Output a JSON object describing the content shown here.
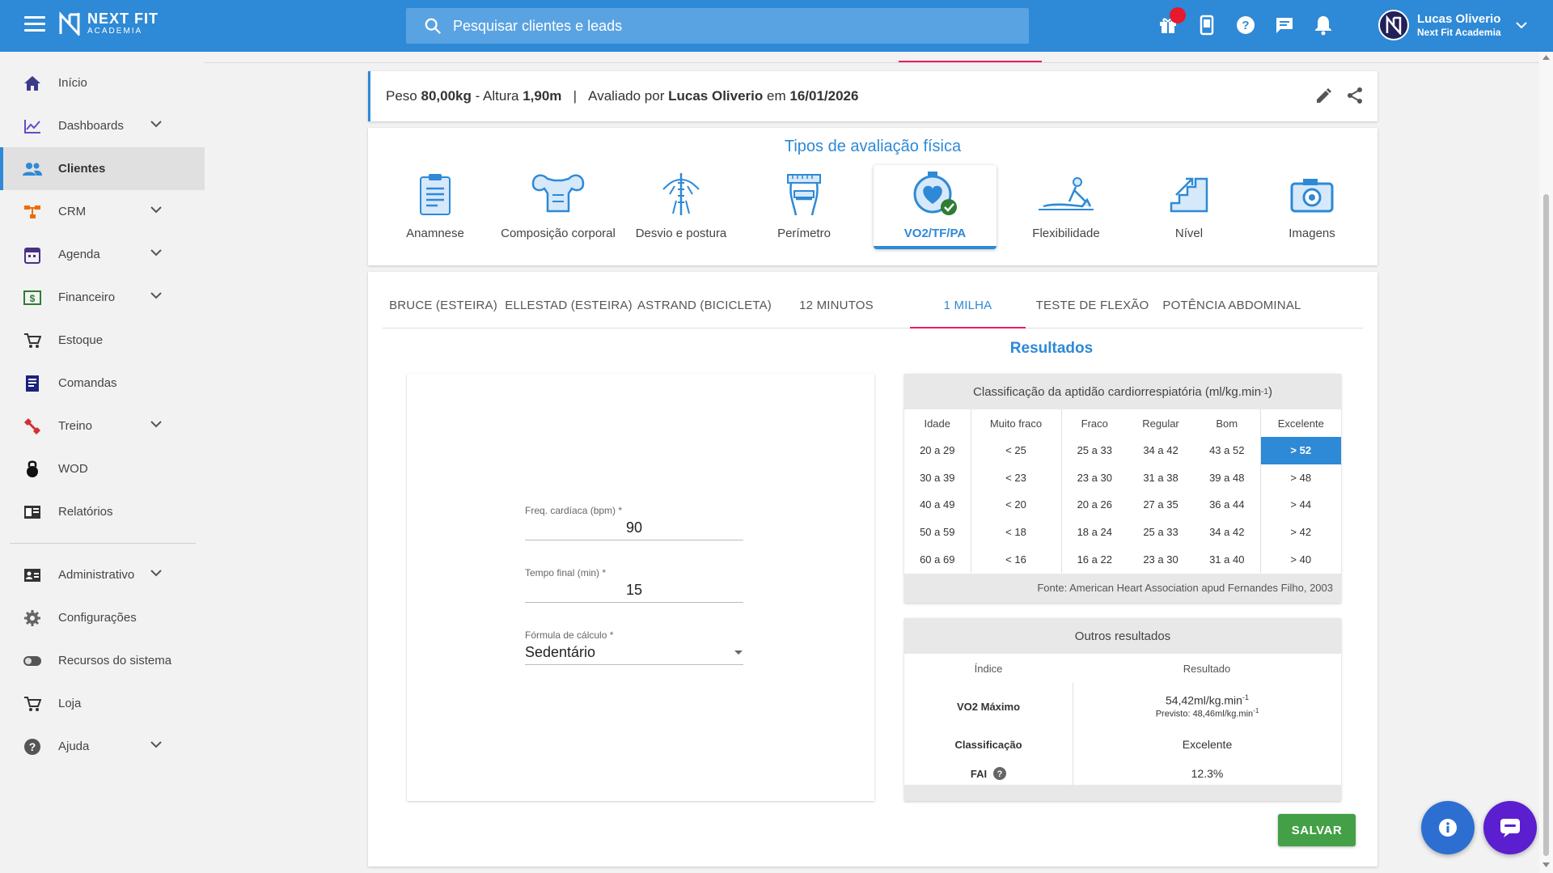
{
  "header": {
    "brand_name": "NEXT FIT",
    "brand_sub": "ACADEMIA",
    "search_placeholder": "Pesquisar clientes e leads",
    "user_name": "Lucas Oliverio",
    "user_org": "Next Fit Academia",
    "accent_color": "#2e89d6"
  },
  "sidebar": {
    "items": [
      {
        "label": "Início",
        "icon": "home-icon"
      },
      {
        "label": "Dashboards",
        "icon": "chart-line-icon",
        "expandable": true
      },
      {
        "label": "Clientes",
        "icon": "people-icon",
        "active": true
      },
      {
        "label": "CRM",
        "icon": "crm-icon",
        "expandable": true
      },
      {
        "label": "Agenda",
        "icon": "calendar-icon",
        "expandable": true
      },
      {
        "label": "Financeiro",
        "icon": "money-icon",
        "expandable": true
      },
      {
        "label": "Estoque",
        "icon": "cart-icon"
      },
      {
        "label": "Comandas",
        "icon": "receipt-icon"
      },
      {
        "label": "Treino",
        "icon": "dumbbell-icon",
        "expandable": true
      },
      {
        "label": "WOD",
        "icon": "kettlebell-icon"
      },
      {
        "label": "Relatórios",
        "icon": "report-icon"
      },
      {
        "label": "Administrativo",
        "icon": "id-card-icon",
        "expandable": true
      },
      {
        "label": "Configurações",
        "icon": "gear-icon"
      },
      {
        "label": "Recursos do sistema",
        "icon": "toggle-icon"
      },
      {
        "label": "Loja",
        "icon": "cart-icon"
      },
      {
        "label": "Ajuda",
        "icon": "help-icon",
        "expandable": true
      }
    ]
  },
  "info": {
    "peso_label": "Peso",
    "peso_value": "80,00kg",
    "altura_label": "- Altura",
    "altura_value": "1,90m",
    "separator": "|",
    "avaliado_label": "Avaliado por",
    "avaliador": "Lucas Oliverio",
    "em_label": "em",
    "data": "16/01/2026"
  },
  "types": {
    "title": "Tipos de avaliação física",
    "items": [
      {
        "label": "Anamnese"
      },
      {
        "label": "Composição corporal"
      },
      {
        "label": "Desvio e postura"
      },
      {
        "label": "Perímetro"
      },
      {
        "label": "VO2/TF/PA",
        "selected": true
      },
      {
        "label": "Flexibilidade"
      },
      {
        "label": "Nível"
      },
      {
        "label": "Imagens"
      }
    ]
  },
  "tabs": [
    {
      "label": "BRUCE (ESTEIRA)"
    },
    {
      "label": "ELLESTAD (ESTEIRA)"
    },
    {
      "label": "ASTRAND (BICICLETA)"
    },
    {
      "label": "12 MINUTOS"
    },
    {
      "label": "1 MILHA",
      "active": true
    },
    {
      "label": "TESTE DE FLEXÃO"
    },
    {
      "label": "POTÊNCIA ABDOMINAL"
    }
  ],
  "results_title": "Resultados",
  "form": {
    "freq_label": "Freq. cardíaca (bpm) *",
    "freq_value": "90",
    "tempo_label": "Tempo final (min) *",
    "tempo_value": "15",
    "formula_label": "Fórmula de cálculo *",
    "formula_value": "Sedentário"
  },
  "classification": {
    "title": "Classificação da aptidão cardiorrespiatória (ml/kg.min",
    "title_sup": "-1",
    "title_end": ")",
    "columns": [
      "Idade",
      "Muito fraco",
      "Fraco",
      "Regular",
      "Bom",
      "Excelente"
    ],
    "rows": [
      [
        "20 a 29",
        "< 25",
        "25 a 33",
        "34 a 42",
        "43 a 52",
        "> 52"
      ],
      [
        "30 a 39",
        "< 23",
        "23 a 30",
        "31 a 38",
        "39 a 48",
        "> 48"
      ],
      [
        "40 a 49",
        "< 20",
        "20 a 26",
        "27 a 35",
        "36 a 44",
        "> 44"
      ],
      [
        "50 a 59",
        "< 18",
        "18 a 24",
        "25 a 33",
        "34 a 42",
        "> 42"
      ],
      [
        "60 a 69",
        "< 16",
        "16 a 22",
        "23 a 30",
        "31 a 40",
        "> 40"
      ]
    ],
    "source": "Fonte: American Heart Association apud Fernandes Filho, 2003"
  },
  "other": {
    "title": "Outros resultados",
    "col_index": "Índice",
    "col_result": "Resultado",
    "vo2_label": "VO2 Máximo",
    "vo2_value": "54,42ml/kg.min",
    "vo2_sup": "-1",
    "previsto": "Previsto: 48,46ml/kg.min",
    "previsto_sup": "-1",
    "class_label": "Classificação",
    "class_value": "Excelente",
    "fai_label": "FAI",
    "fai_value": "12.3%"
  },
  "save_label": "SALVAR"
}
